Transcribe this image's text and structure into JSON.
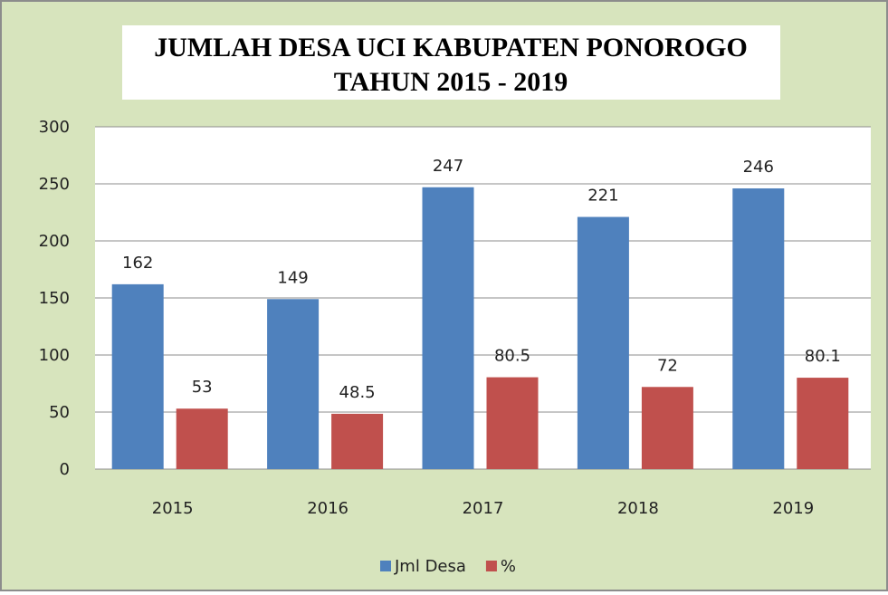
{
  "chart_data": {
    "type": "bar",
    "title": [
      "JUMLAH DESA UCI KABUPATEN PONOROGO",
      "TAHUN 2015 - 2019"
    ],
    "categories": [
      "2015",
      "2016",
      "2017",
      "2018",
      "2019"
    ],
    "series": [
      {
        "name": "Jml Desa",
        "color": "#4f81bd",
        "values": [
          162,
          149,
          247,
          221,
          246
        ]
      },
      {
        "name": "%",
        "color": "#c0504d",
        "values": [
          53,
          48.5,
          80.5,
          72,
          80.1
        ]
      }
    ],
    "ylim": [
      0,
      300
    ],
    "yticks": [
      0,
      50,
      100,
      150,
      200,
      250,
      300
    ],
    "grid": true,
    "legend": "bottom"
  }
}
